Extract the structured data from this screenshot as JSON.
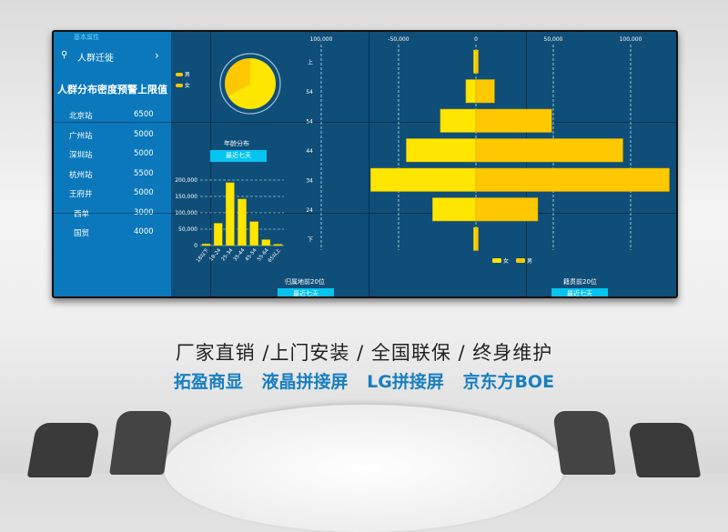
{
  "left_panel": {
    "section_label": "基本属性",
    "nav_item": "人群迁徙",
    "nav_arrow": "›",
    "title": "人群分布密度预警上限值",
    "stations": [
      {
        "name": "北京站",
        "value": "6500"
      },
      {
        "name": "广州站",
        "value": "5000"
      },
      {
        "name": "深圳站",
        "value": "5000"
      },
      {
        "name": "杭州站",
        "value": "5500"
      },
      {
        "name": "王府井",
        "value": "5000"
      },
      {
        "name": "西单",
        "value": "3000"
      },
      {
        "name": "国贸",
        "value": "4000"
      }
    ]
  },
  "gender_legend": [
    "男",
    "女"
  ],
  "age_section": {
    "title": "年龄分布",
    "button": "最近七天"
  },
  "origin_section": {
    "title": "归属地前20位",
    "button": "最近七天"
  },
  "native_section": {
    "title": "籍贯前20位",
    "button": "最近七天"
  },
  "colors": {
    "yellow": "#ffe600",
    "orange": "#ffc800",
    "panel_blue": "#0b78bb",
    "dark_blue": "#0f4e78",
    "button": "#06c4f0",
    "slogan_blue": "#1a7fc0"
  },
  "chart_data": [
    {
      "type": "pie",
      "categories": [
        "男",
        "女"
      ],
      "values": [
        33,
        67
      ]
    },
    {
      "type": "bar",
      "categories": [
        "18以下",
        "18-24",
        "25-34",
        "35-44",
        "45-54",
        "55-64",
        "65以上"
      ],
      "values": [
        5000,
        68000,
        192000,
        142000,
        73000,
        18000,
        4000
      ],
      "yticks": [
        "200,000",
        "150,000",
        "100,000",
        "50,000",
        "0"
      ],
      "ylim": [
        0,
        200000
      ],
      "grid": true
    },
    {
      "type": "bar",
      "orientation": "horizontal",
      "categories": [
        "上",
        "54",
        "54",
        "44",
        "34",
        "24",
        "下"
      ],
      "series": [
        {
          "name": "女",
          "values": [
            -1500,
            -6500,
            -23000,
            -45000,
            -68000,
            -28000,
            -1500
          ]
        },
        {
          "name": "男",
          "values": [
            1500,
            12000,
            49000,
            95000,
            125000,
            40000,
            1500
          ]
        }
      ],
      "xticks": [
        "100,000",
        "-50,000",
        "0",
        "50,000",
        "100,000"
      ],
      "xlim": [
        -100000,
        125000
      ],
      "grid": true,
      "legend": "bottom"
    }
  ],
  "slogan": {
    "line1": "厂家直销 /上门安装 / 全国联保 / 终身维护",
    "line2": "拓盈商显 液晶拼接屏 LG拼接屏 京东方BOE"
  }
}
